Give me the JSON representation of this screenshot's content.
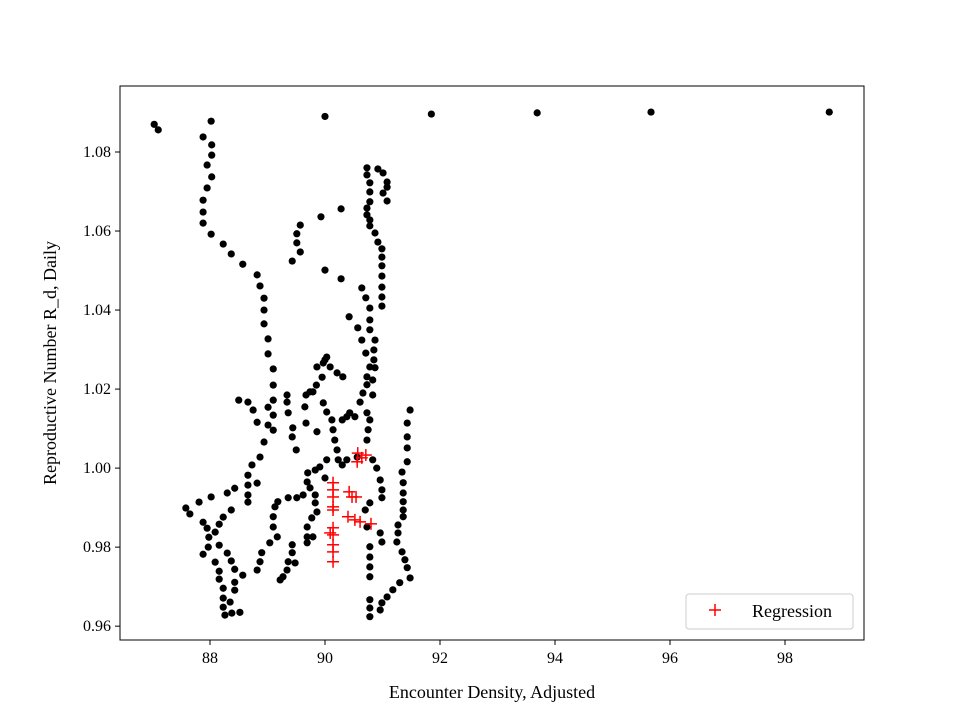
{
  "chart_data": {
    "type": "scatter",
    "title": "",
    "xlabel": "Encounter Density, Adjusted",
    "ylabel": "Reproductive Number R_d, Daily",
    "xlim": [
      86.435,
      99.374
    ],
    "ylim": [
      0.9565,
      1.0967
    ],
    "xticks": [
      88,
      90,
      92,
      94,
      96,
      98
    ],
    "xtick_labels": [
      "88",
      "90",
      "92",
      "94",
      "96",
      "98"
    ],
    "yticks": [
      0.96,
      0.98,
      1.0,
      1.02,
      1.04,
      1.06,
      1.08
    ],
    "ytick_labels": [
      "0.96",
      "0.98",
      "1.00",
      "1.02",
      "1.04",
      "1.06",
      "1.08"
    ],
    "grid": false,
    "legend_position": "lower-right",
    "series": [
      {
        "marker": "circle",
        "color": "#000000",
        "points": [
          [
            87.03,
            1.087
          ],
          [
            87.1,
            1.0856
          ],
          [
            90.0,
            1.089
          ],
          [
            91.85,
            1.0896
          ],
          [
            93.69,
            1.0899
          ],
          [
            95.67,
            1.0901
          ],
          [
            98.77,
            1.0901
          ],
          [
            88.02,
            1.0878
          ],
          [
            87.88,
            1.0838
          ],
          [
            88.03,
            1.0818
          ],
          [
            88.03,
            1.0792
          ],
          [
            87.95,
            1.0767
          ],
          [
            88.03,
            1.0737
          ],
          [
            87.95,
            1.0709
          ],
          [
            87.88,
            1.0678
          ],
          [
            87.88,
            1.0648
          ],
          [
            87.88,
            1.062
          ],
          [
            88.02,
            1.0592
          ],
          [
            88.23,
            1.0567
          ],
          [
            88.37,
            1.0542
          ],
          [
            88.57,
            1.0516
          ],
          [
            88.82,
            1.0489
          ],
          [
            88.87,
            1.0461
          ],
          [
            88.94,
            1.043
          ],
          [
            88.94,
            1.04
          ],
          [
            88.94,
            1.0365
          ],
          [
            89.01,
            1.0327
          ],
          [
            89.01,
            1.0289
          ],
          [
            89.1,
            1.0251
          ],
          [
            89.1,
            1.021
          ],
          [
            89.1,
            1.0172
          ],
          [
            88.5,
            1.0172
          ],
          [
            88.66,
            1.0167
          ],
          [
            88.75,
            1.0147
          ],
          [
            88.82,
            1.0116
          ],
          [
            89.01,
            1.0154
          ],
          [
            89.1,
            1.0134
          ],
          [
            89.01,
            1.0109
          ],
          [
            89.1,
            1.0096
          ],
          [
            88.94,
            1.0066
          ],
          [
            88.87,
            1.0028
          ],
          [
            88.73,
            1.0008
          ],
          [
            88.66,
            0.9982
          ],
          [
            88.66,
            0.9957
          ],
          [
            88.66,
            0.9932
          ],
          [
            88.66,
            0.9914
          ],
          [
            88.82,
            0.9962
          ],
          [
            88.43,
            0.9949
          ],
          [
            88.3,
            0.9937
          ],
          [
            88.02,
            0.9927
          ],
          [
            87.81,
            0.9914
          ],
          [
            87.58,
            0.9899
          ],
          [
            87.65,
            0.9884
          ],
          [
            88.37,
            0.9894
          ],
          [
            88.23,
            0.9876
          ],
          [
            88.16,
            0.9858
          ],
          [
            88.09,
            0.9838
          ],
          [
            87.88,
            0.9863
          ],
          [
            87.95,
            0.9848
          ],
          [
            87.98,
            0.9825
          ],
          [
            87.97,
            0.98
          ],
          [
            87.88,
            0.9782
          ],
          [
            88.16,
            0.9805
          ],
          [
            88.3,
            0.9785
          ],
          [
            88.37,
            0.9765
          ],
          [
            88.43,
            0.9744
          ],
          [
            88.57,
            0.9729
          ],
          [
            88.09,
            0.9762
          ],
          [
            88.16,
            0.9739
          ],
          [
            88.16,
            0.9719
          ],
          [
            88.23,
            0.9696
          ],
          [
            88.23,
            0.9671
          ],
          [
            88.23,
            0.9648
          ],
          [
            88.26,
            0.9628
          ],
          [
            88.38,
            0.9633
          ],
          [
            88.52,
            0.9635
          ],
          [
            88.43,
            0.9691
          ],
          [
            88.43,
            0.9711
          ],
          [
            88.35,
            0.9661
          ],
          [
            89.34,
            1.0185
          ],
          [
            89.34,
            1.0167
          ],
          [
            89.36,
            1.014
          ],
          [
            89.44,
            1.0102
          ],
          [
            89.43,
            1.0079
          ],
          [
            89.5,
            1.0046
          ],
          [
            89.67,
            1.0185
          ],
          [
            89.65,
            1.0155
          ],
          [
            89.67,
            1.0114
          ],
          [
            89.79,
            1.0193
          ],
          [
            89.86,
            1.0092
          ],
          [
            89.97,
            1.0165
          ],
          [
            90.03,
            1.0142
          ],
          [
            90.12,
            1.0122
          ],
          [
            90.14,
            1.0097
          ],
          [
            90.17,
            1.0071
          ],
          [
            90.21,
            1.0046
          ],
          [
            90.23,
            1.0021
          ],
          [
            90.3,
            1.0122
          ],
          [
            90.38,
            1.013
          ],
          [
            90.43,
            1.014
          ],
          [
            90.52,
            1.013
          ],
          [
            90.73,
            1.014
          ],
          [
            90.78,
            1.0122
          ],
          [
            90.75,
            1.0097
          ],
          [
            90.73,
            1.0071
          ],
          [
            90.73,
            1.0231
          ],
          [
            90.83,
            1.0223
          ],
          [
            90.83,
            1.0185
          ],
          [
            90.73,
            1.0211
          ],
          [
            90.66,
            1.019
          ],
          [
            90.61,
            1.0167
          ],
          [
            91.48,
            1.0147
          ],
          [
            91.43,
            1.0114
          ],
          [
            91.43,
            1.0079
          ],
          [
            91.43,
            1.0051
          ],
          [
            91.43,
            1.0016
          ],
          [
            91.34,
            0.999
          ],
          [
            91.36,
            0.9963
          ],
          [
            91.36,
            0.9937
          ],
          [
            91.36,
            0.9915
          ],
          [
            91.36,
            0.9894
          ],
          [
            91.36,
            0.9877
          ],
          [
            91.27,
            0.9856
          ],
          [
            91.27,
            0.9836
          ],
          [
            91.25,
            0.9813
          ],
          [
            91.34,
            0.9788
          ],
          [
            91.39,
            0.9768
          ],
          [
            91.43,
            0.9748
          ],
          [
            91.48,
            0.9722
          ],
          [
            91.3,
            0.971
          ],
          [
            91.18,
            0.9692
          ],
          [
            91.08,
            0.9674
          ],
          [
            90.99,
            0.9659
          ],
          [
            90.96,
            0.9641
          ],
          [
            90.78,
            0.9667
          ],
          [
            90.78,
            0.9646
          ],
          [
            90.78,
            0.9624
          ],
          [
            90.78,
            0.9801
          ],
          [
            90.78,
            0.9775
          ],
          [
            90.78,
            0.975
          ],
          [
            90.78,
            0.9725
          ],
          [
            90.96,
            0.9836
          ],
          [
            90.99,
            0.9813
          ],
          [
            90.83,
            1.0021
          ],
          [
            90.9,
            1.0
          ],
          [
            90.96,
            0.997
          ],
          [
            90.99,
            0.9945
          ],
          [
            90.99,
            0.9925
          ],
          [
            90.78,
            0.9912
          ],
          [
            90.7,
            0.9894
          ],
          [
            90.73,
            0.9851
          ],
          [
            90.56,
            1.0028
          ],
          [
            90.38,
            1.0021
          ],
          [
            90.3,
            1.0008
          ],
          [
            90.03,
            1.0021
          ],
          [
            89.91,
            1.0003
          ],
          [
            89.83,
            0.9995
          ],
          [
            89.7,
            0.9988
          ],
          [
            89.69,
            0.9965
          ],
          [
            89.74,
            0.995
          ],
          [
            89.83,
            0.9932
          ],
          [
            89.62,
            0.9932
          ],
          [
            89.51,
            0.9925
          ],
          [
            89.36,
            0.9925
          ],
          [
            89.18,
            0.9915
          ],
          [
            89.13,
            0.9902
          ],
          [
            89.1,
            0.9877
          ],
          [
            89.1,
            0.9851
          ],
          [
            89.17,
            0.9826
          ],
          [
            89.04,
            0.9811
          ],
          [
            88.9,
            0.9786
          ],
          [
            88.87,
            0.9763
          ],
          [
            88.82,
            0.9742
          ],
          [
            90.0,
            0.9975
          ],
          [
            89.83,
            0.9912
          ],
          [
            89.86,
            0.9889
          ],
          [
            89.77,
            0.9874
          ],
          [
            89.69,
            0.9851
          ],
          [
            89.69,
            0.9826
          ],
          [
            89.69,
            0.9811
          ],
          [
            89.79,
            0.9826
          ],
          [
            89.43,
            0.9806
          ],
          [
            89.43,
            0.9786
          ],
          [
            89.36,
            0.9763
          ],
          [
            89.48,
            0.976
          ],
          [
            89.34,
            0.9742
          ],
          [
            89.27,
            0.9725
          ],
          [
            89.22,
            0.9717
          ],
          [
            90.73,
            1.076
          ],
          [
            90.73,
            1.0742
          ],
          [
            90.78,
            1.0722
          ],
          [
            90.78,
            1.0699
          ],
          [
            90.78,
            1.0674
          ],
          [
            90.73,
            1.0658
          ],
          [
            90.73,
            1.0641
          ],
          [
            90.78,
            1.0628
          ],
          [
            90.78,
            1.0613
          ],
          [
            90.87,
            1.0595
          ],
          [
            90.92,
            1.0572
          ],
          [
            90.99,
            1.0555
          ],
          [
            90.99,
            1.0534
          ],
          [
            90.99,
            1.0512
          ],
          [
            90.99,
            1.0486
          ],
          [
            90.99,
            1.0458
          ],
          [
            90.99,
            1.0433
          ],
          [
            90.99,
            1.041
          ],
          [
            90.92,
            1.0757
          ],
          [
            91.01,
            1.0747
          ],
          [
            91.08,
            1.0724
          ],
          [
            91.08,
            1.0711
          ],
          [
            91.01,
            1.0696
          ],
          [
            91.08,
            1.0676
          ],
          [
            90.28,
            1.0656
          ],
          [
            89.93,
            1.0636
          ],
          [
            89.57,
            1.0615
          ],
          [
            89.51,
            1.0593
          ],
          [
            89.51,
            1.057
          ],
          [
            89.57,
            1.0547
          ],
          [
            89.43,
            1.0524
          ],
          [
            90.0,
            1.0501
          ],
          [
            90.28,
            1.0479
          ],
          [
            90.64,
            1.0456
          ],
          [
            90.71,
            1.0431
          ],
          [
            90.78,
            1.0405
          ],
          [
            90.42,
            1.0383
          ],
          [
            90.57,
            1.0355
          ],
          [
            90.78,
            1.0375
          ],
          [
            90.78,
            1.035
          ],
          [
            90.64,
            1.0324
          ],
          [
            90.87,
            1.0324
          ],
          [
            90.85,
            1.0299
          ],
          [
            90.71,
            1.0291
          ],
          [
            90.85,
            1.0274
          ],
          [
            90.78,
            1.0256
          ],
          [
            90.87,
            1.0254
          ],
          [
            90.03,
            1.0281
          ],
          [
            89.97,
            1.0266
          ],
          [
            89.86,
            1.0256
          ],
          [
            90.09,
            1.0256
          ],
          [
            90.21,
            1.0241
          ],
          [
            90.31,
            1.0231
          ],
          [
            90.0,
            1.0274
          ],
          [
            89.95,
            1.023
          ],
          [
            89.85,
            1.021
          ],
          [
            89.74,
            1.0193
          ]
        ]
      },
      {
        "name": "Regression",
        "marker": "plus",
        "color": "#ff0000",
        "points": [
          [
            90.14,
            0.9963
          ],
          [
            90.14,
            0.9945
          ],
          [
            90.14,
            0.9927
          ],
          [
            90.14,
            0.9902
          ],
          [
            90.14,
            0.9894
          ],
          [
            90.14,
            0.9849
          ],
          [
            90.14,
            0.9831
          ],
          [
            90.14,
            0.9806
          ],
          [
            90.14,
            0.9788
          ],
          [
            90.14,
            0.9763
          ],
          [
            90.09,
            0.9836
          ],
          [
            90.42,
            0.994
          ],
          [
            90.47,
            0.9927
          ],
          [
            90.54,
            0.9927
          ],
          [
            90.4,
            0.9877
          ],
          [
            90.52,
            0.9869
          ],
          [
            90.61,
            0.9864
          ],
          [
            90.8,
            0.9859
          ],
          [
            90.57,
            1.0038
          ],
          [
            90.64,
            1.0026
          ],
          [
            90.56,
            1.0016
          ],
          [
            90.71,
            1.0033
          ]
        ]
      }
    ]
  }
}
